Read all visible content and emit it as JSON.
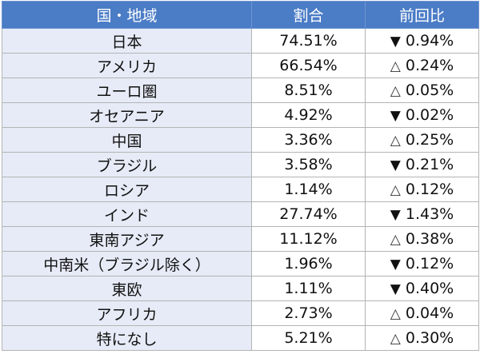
{
  "table": {
    "headers": {
      "region": "国・地域",
      "share": "割合",
      "change": "前回比"
    },
    "rows": [
      {
        "region": "日本",
        "share": "74.51%",
        "mark": "▼",
        "direction": "down",
        "change": "0.94%"
      },
      {
        "region": "アメリカ",
        "share": "66.54%",
        "mark": "△",
        "direction": "up",
        "change": "0.24%"
      },
      {
        "region": "ユーロ圏",
        "share": "8.51%",
        "mark": "△",
        "direction": "up",
        "change": "0.05%"
      },
      {
        "region": "オセアニア",
        "share": "4.92%",
        "mark": "▼",
        "direction": "down",
        "change": "0.02%"
      },
      {
        "region": "中国",
        "share": "3.36%",
        "mark": "△",
        "direction": "up",
        "change": "0.25%"
      },
      {
        "region": "ブラジル",
        "share": "3.58%",
        "mark": "▼",
        "direction": "down",
        "change": "0.21%"
      },
      {
        "region": "ロシア",
        "share": "1.14%",
        "mark": "△",
        "direction": "up",
        "change": "0.12%"
      },
      {
        "region": "インド",
        "share": "27.74%",
        "mark": "▼",
        "direction": "down",
        "change": "1.43%"
      },
      {
        "region": "東南アジア",
        "share": "11.12%",
        "mark": "△",
        "direction": "up",
        "change": "0.38%"
      },
      {
        "region": "中南米（ブラジル除く）",
        "share": "1.96%",
        "mark": "▼",
        "direction": "down",
        "change": "0.12%"
      },
      {
        "region": "東欧",
        "share": "1.11%",
        "mark": "▼",
        "direction": "down",
        "change": "0.40%"
      },
      {
        "region": "アフリカ",
        "share": "2.73%",
        "mark": "△",
        "direction": "up",
        "change": "0.04%"
      },
      {
        "region": "特になし",
        "share": "5.21%",
        "mark": "△",
        "direction": "up",
        "change": "0.30%"
      }
    ]
  },
  "colors": {
    "header_bg": "#4b7cc6",
    "region_bg": "#e6ebf7",
    "border": "#b4b4b4"
  }
}
